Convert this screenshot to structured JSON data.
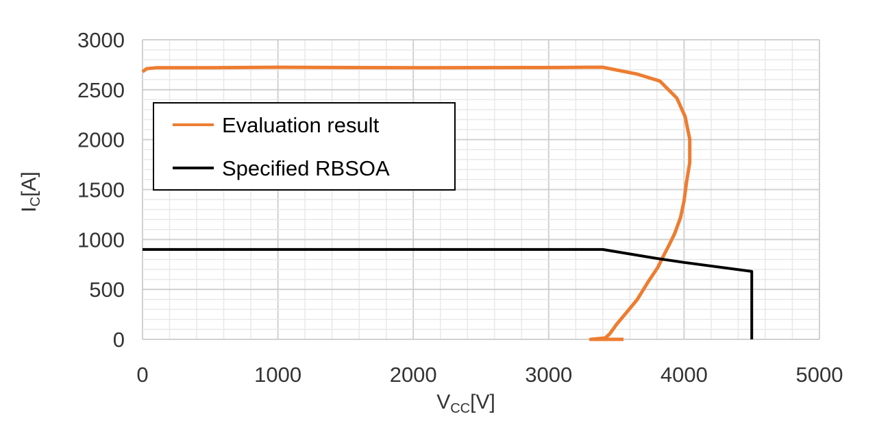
{
  "chart_data": {
    "type": "line",
    "title": "",
    "xlabel": {
      "main": "V",
      "sub": "CC",
      "unit": "[V]"
    },
    "ylabel": {
      "main": "I",
      "sub": "C",
      "unit": "[A]"
    },
    "xlim": [
      0,
      5000
    ],
    "ylim": [
      0,
      3000
    ],
    "xticks": [
      0,
      1000,
      2000,
      3000,
      4000,
      5000
    ],
    "yticks": [
      0,
      500,
      1000,
      1500,
      2000,
      2500,
      3000
    ],
    "grid": {
      "major": true,
      "minor": true,
      "x_minor_step": 200,
      "y_minor_step": 100
    },
    "legend_placement": "upper-left",
    "series": [
      {
        "name": "Evaluation result",
        "color": "#ED7D31",
        "x": [
          0,
          30,
          100,
          500,
          1000,
          2000,
          3000,
          3300,
          3400,
          3654,
          3821,
          3947,
          4008,
          4042,
          4042,
          4017,
          4000,
          3974,
          3932,
          3890,
          3848,
          3806,
          3738,
          3654,
          3570,
          3502,
          3451,
          3418,
          3310,
          3553
        ],
        "y": [
          2680,
          2710,
          2720,
          2720,
          2725,
          2720,
          2722,
          2725,
          2725,
          2656,
          2587,
          2416,
          2230,
          2004,
          1771,
          1565,
          1386,
          1222,
          1064,
          947,
          837,
          721,
          583,
          398,
          261,
          151,
          55,
          14,
          0,
          0
        ]
      },
      {
        "name": "Specified RBSOA",
        "color": "#000000",
        "x": [
          0,
          3400,
          3800,
          4000,
          4500,
          4500
        ],
        "y": [
          900,
          900,
          810,
          770,
          680,
          0
        ]
      }
    ]
  }
}
